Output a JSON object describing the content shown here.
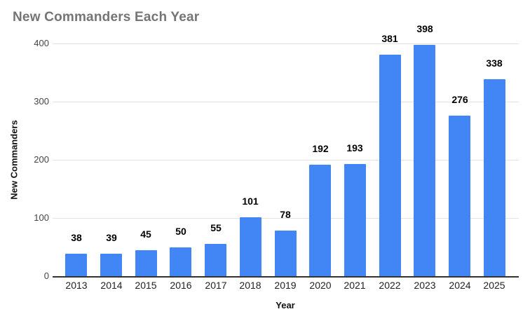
{
  "chart_data": {
    "type": "bar",
    "title": "New Commanders Each Year",
    "xlabel": "Year",
    "ylabel": "New Commanders",
    "categories": [
      "2013",
      "2014",
      "2015",
      "2016",
      "2017",
      "2018",
      "2019",
      "2020",
      "2021",
      "2022",
      "2023",
      "2024",
      "2025"
    ],
    "values": [
      38,
      39,
      45,
      50,
      55,
      101,
      78,
      192,
      193,
      381,
      398,
      276,
      338
    ],
    "ylim": [
      0,
      400
    ],
    "yticks": [
      0,
      100,
      200,
      300,
      400
    ],
    "grid": true,
    "legend_position": "none",
    "value_labels": true,
    "colors": {
      "bar": "#4285f4",
      "title": "#757575",
      "gridline": "#e3e3e3",
      "axis_line": "#333333",
      "tick_text": "#444444",
      "value_text": "#000000"
    }
  }
}
